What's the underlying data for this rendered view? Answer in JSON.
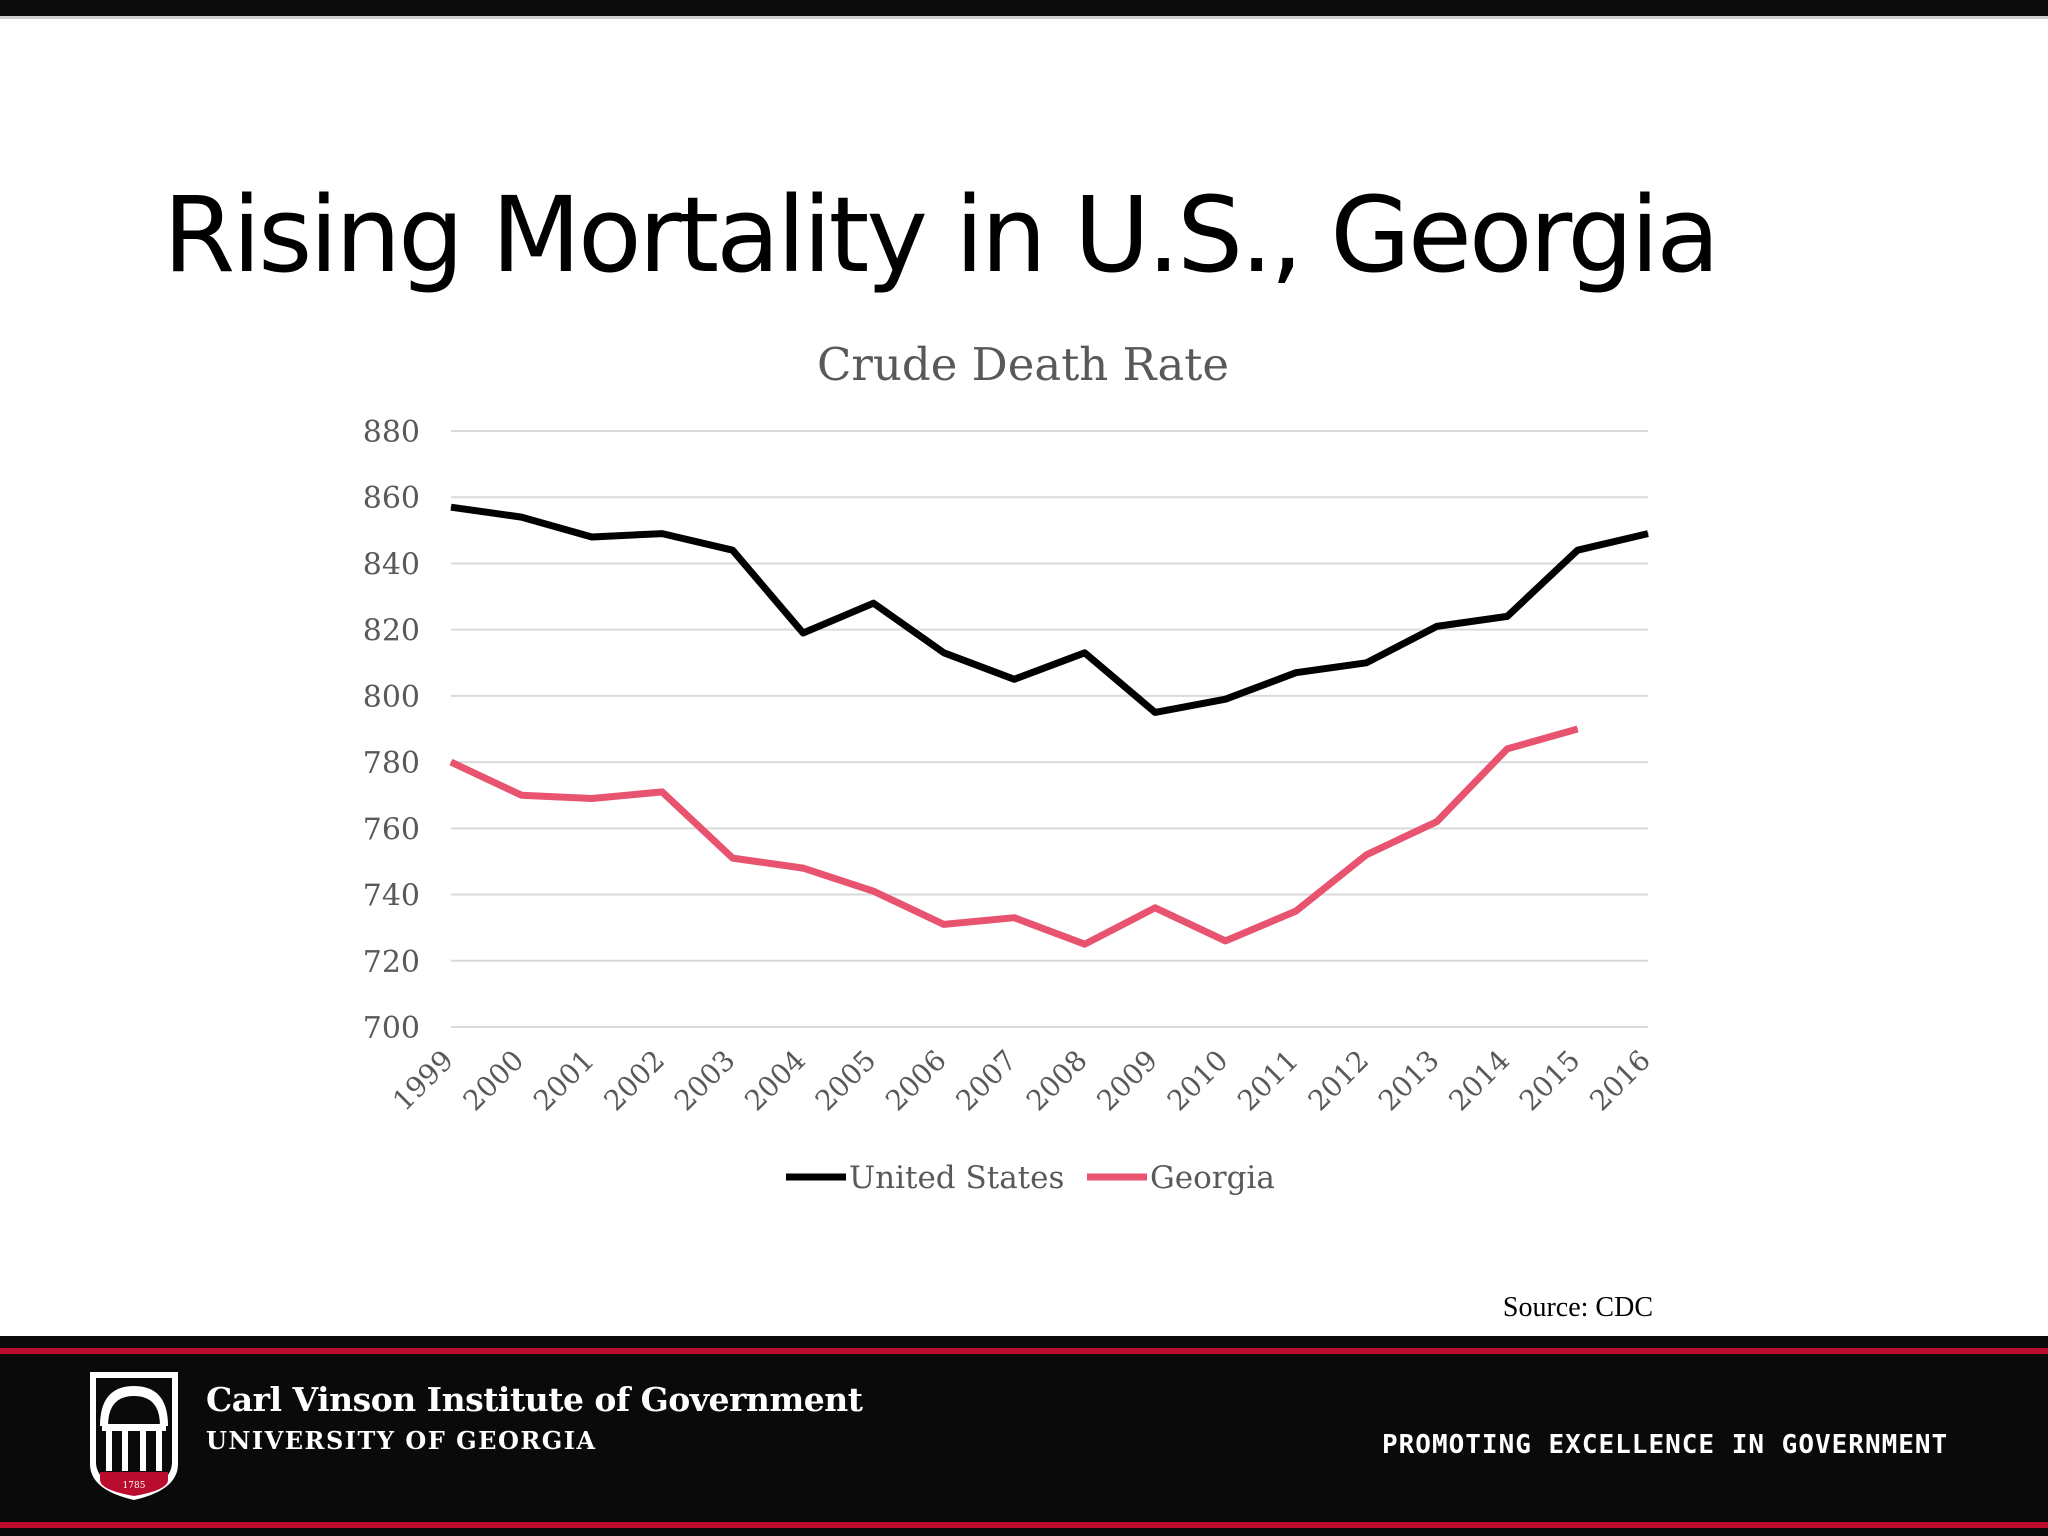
{
  "slide": {
    "title": "Rising Mortality in U.S., Georgia",
    "source": "Source: CDC"
  },
  "footer": {
    "institute": "Carl Vinson Institute of Government",
    "university": "UNIVERSITY OF GEORGIA",
    "logo_year": "1785",
    "tagline": "PROMOTING EXCELLENCE IN GOVERNMENT",
    "colors": {
      "background": "#0a0a0a",
      "accent": "#ba0c2f"
    }
  },
  "chart_data": {
    "type": "line",
    "title": "Crude Death Rate",
    "xlabel": "",
    "ylabel": "",
    "ylim": [
      700,
      880
    ],
    "yticks": [
      700,
      720,
      740,
      760,
      780,
      800,
      820,
      840,
      860,
      880
    ],
    "grid": true,
    "legend_position": "bottom",
    "categories": [
      "1999",
      "2000",
      "2001",
      "2002",
      "2003",
      "2004",
      "2005",
      "2006",
      "2007",
      "2008",
      "2009",
      "2010",
      "2011",
      "2012",
      "2013",
      "2014",
      "2015",
      "2016"
    ],
    "series": [
      {
        "name": "United States",
        "color": "#000000",
        "values": [
          857,
          854,
          848,
          849,
          844,
          819,
          828,
          813,
          805,
          813,
          795,
          799,
          807,
          810,
          821,
          824,
          844,
          849
        ]
      },
      {
        "name": "Georgia",
        "color": "#e8536f",
        "values": [
          780,
          770,
          769,
          771,
          751,
          748,
          741,
          731,
          733,
          725,
          736,
          726,
          735,
          752,
          762,
          784,
          790,
          null
        ]
      }
    ]
  }
}
